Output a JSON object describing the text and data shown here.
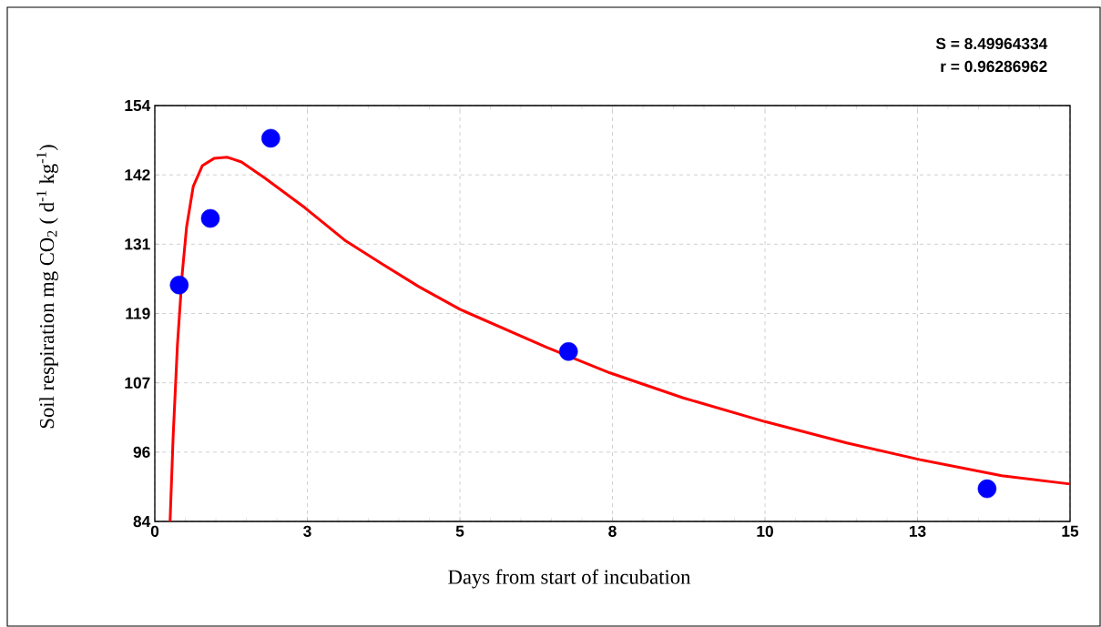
{
  "chart_data": {
    "type": "scatter",
    "xlabel": "Days from start of incubation",
    "ylabel": "Soil respiration mg CO$_{2}$ ( d$^{-1}$ kg$^{-1}$)",
    "annotations": [
      "S = 8.49964334",
      "r = 0.96286962"
    ],
    "xlim": [
      0,
      15
    ],
    "ylim": [
      84,
      154
    ],
    "xticks": [
      0,
      {
        "value": 2.5,
        "label": "3"
      },
      5,
      {
        "value": 7.5,
        "label": "8"
      },
      10,
      {
        "value": 12.5,
        "label": "13"
      },
      15
    ],
    "yticks": [
      84,
      {
        "value": 95.67,
        "label": "96"
      },
      {
        "value": 107.33,
        "label": "107"
      },
      119,
      {
        "value": 130.67,
        "label": "131"
      },
      {
        "value": 142.33,
        "label": "142"
      },
      154
    ],
    "grid": true,
    "series": [
      {
        "color": "#0000ff",
        "marker": "circle",
        "x": [
          0.4,
          0.91,
          1.9,
          6.78,
          13.64
        ],
        "values": [
          123.8,
          135.0,
          148.5,
          112.6,
          89.5
        ]
      },
      {
        "type": "line",
        "color": "#ff0000",
        "marker": "none",
        "x": [
          0.25,
          0.3,
          0.37,
          0.45,
          0.52,
          0.63,
          0.78,
          0.97,
          1.19,
          1.42,
          1.79,
          2.46,
          3.13,
          3.73,
          4.33,
          5.0,
          6.42,
          7.46,
          8.66,
          10.0,
          11.34,
          12.54,
          13.88,
          15.0
        ],
        "values": [
          84,
          98.2,
          113.6,
          125.8,
          133.5,
          140.4,
          143.9,
          145.1,
          145.3,
          144.5,
          141.9,
          136.8,
          131.2,
          127.3,
          123.5,
          119.7,
          113.3,
          109.0,
          104.8,
          100.8,
          97.2,
          94.4,
          91.7,
          90.3
        ]
      }
    ]
  }
}
